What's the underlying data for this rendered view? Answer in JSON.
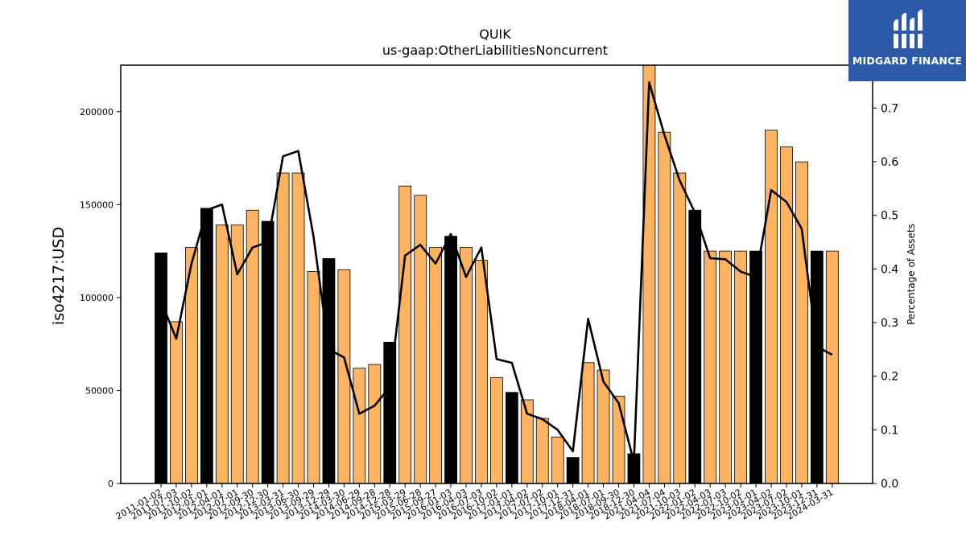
{
  "chart_data": {
    "type": "bar",
    "title": "QUIK",
    "subtitle": "us-gaap:OtherLiabilitiesNoncurrent",
    "ylabel": "iso4217:USD",
    "y2label": "Percentage of Assets",
    "ylim": [
      0,
      225000
    ],
    "y2lim": [
      0,
      0.78
    ],
    "yticks": [
      0,
      50000,
      100000,
      150000,
      200000
    ],
    "y2ticks": [
      "0.0",
      "0.1",
      "0.2",
      "0.3",
      "0.4",
      "0.5",
      "0.6",
      "0.7"
    ],
    "colors": {
      "bar": "#fdb462",
      "highlight_bar": "#000000",
      "line": "#000000",
      "bar_edge": "#000000"
    },
    "categories": [
      "2011-01-02",
      "2011-07-03",
      "2011-10-02",
      "2012-01-01",
      "2012-04-01",
      "2012-07-01",
      "2012-09-30",
      "2012-12-30",
      "2013-03-31",
      "2013-06-30",
      "2013-09-29",
      "2013-12-29",
      "2014-03-30",
      "2014-06-29",
      "2014-09-28",
      "2014-12-28",
      "2015-03-29",
      "2015-06-28",
      "2015-09-27",
      "2016-01-03",
      "2016-04-03",
      "2016-07-03",
      "2016-10-02",
      "2017-01-01",
      "2017-04-02",
      "2017-07-02",
      "2017-10-01",
      "2017-12-31",
      "2018-04-01",
      "2018-07-01",
      "2018-09-30",
      "2018-12-30",
      "2021-04-04",
      "2021-07-04",
      "2021-10-03",
      "2022-01-02",
      "2022-04-03",
      "2022-07-03",
      "2022-10-02",
      "2023-01-01",
      "2023-04-02",
      "2023-07-02",
      "2023-10-01",
      "2023-12-31",
      "2024-03-31"
    ],
    "values": [
      124000,
      87000,
      127000,
      148000,
      139000,
      139000,
      147000,
      141000,
      167000,
      167000,
      114000,
      121000,
      115000,
      62000,
      64000,
      76000,
      160000,
      155000,
      127000,
      133000,
      127000,
      120000,
      57000,
      49000,
      45000,
      35000,
      25000,
      14000,
      65000,
      61000,
      47000,
      16000,
      226000,
      189000,
      167000,
      147000,
      125000,
      125000,
      125000,
      125000,
      190000,
      181000,
      173000,
      125000,
      125000
    ],
    "highlight": [
      true,
      false,
      false,
      true,
      false,
      false,
      false,
      true,
      false,
      false,
      false,
      true,
      false,
      false,
      false,
      true,
      false,
      false,
      false,
      true,
      false,
      false,
      false,
      true,
      false,
      false,
      false,
      true,
      false,
      false,
      false,
      true,
      false,
      false,
      false,
      true,
      false,
      false,
      false,
      true,
      false,
      false,
      false,
      true,
      false
    ],
    "pct_of_assets": [
      0.34,
      0.27,
      0.41,
      0.51,
      0.52,
      0.39,
      0.44,
      0.45,
      0.61,
      0.62,
      0.46,
      0.25,
      0.235,
      0.13,
      0.145,
      0.18,
      0.425,
      0.445,
      0.41,
      0.465,
      0.385,
      0.44,
      0.232,
      0.225,
      0.13,
      0.12,
      0.1,
      0.06,
      0.307,
      0.19,
      0.15,
      0.04,
      0.748,
      0.65,
      0.565,
      0.505,
      0.42,
      0.418,
      0.395,
      0.385,
      0.547,
      0.525,
      0.475,
      0.255,
      0.24
    ],
    "grid": false,
    "legend": "none"
  },
  "logo": {
    "text": "MIDGARD FINANCE"
  }
}
